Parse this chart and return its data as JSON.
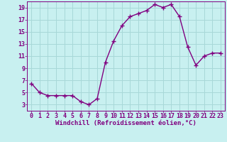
{
  "x": [
    0,
    1,
    2,
    3,
    4,
    5,
    6,
    7,
    8,
    9,
    10,
    11,
    12,
    13,
    14,
    15,
    16,
    17,
    18,
    19,
    20,
    21,
    22,
    23
  ],
  "y": [
    6.5,
    5.0,
    4.5,
    4.5,
    4.5,
    4.5,
    3.5,
    3.0,
    4.0,
    10.0,
    13.5,
    16.0,
    17.5,
    18.0,
    18.5,
    19.5,
    19.0,
    19.5,
    17.5,
    12.5,
    9.5,
    11.0,
    11.5,
    11.5
  ],
  "line_color": "#800080",
  "marker": "+",
  "marker_size": 4,
  "linewidth": 1.0,
  "bg_color": "#c8f0f0",
  "grid_color": "#a8d8d8",
  "xlabel": "Windchill (Refroidissement éolien,°C)",
  "xlabel_fontsize": 6.5,
  "tick_fontsize": 6.0,
  "ylim": [
    2,
    20
  ],
  "xlim": [
    -0.5,
    23.5
  ],
  "yticks": [
    3,
    5,
    7,
    9,
    11,
    13,
    15,
    17,
    19
  ],
  "xticks": [
    0,
    1,
    2,
    3,
    4,
    5,
    6,
    7,
    8,
    9,
    10,
    11,
    12,
    13,
    14,
    15,
    16,
    17,
    18,
    19,
    20,
    21,
    22,
    23
  ]
}
